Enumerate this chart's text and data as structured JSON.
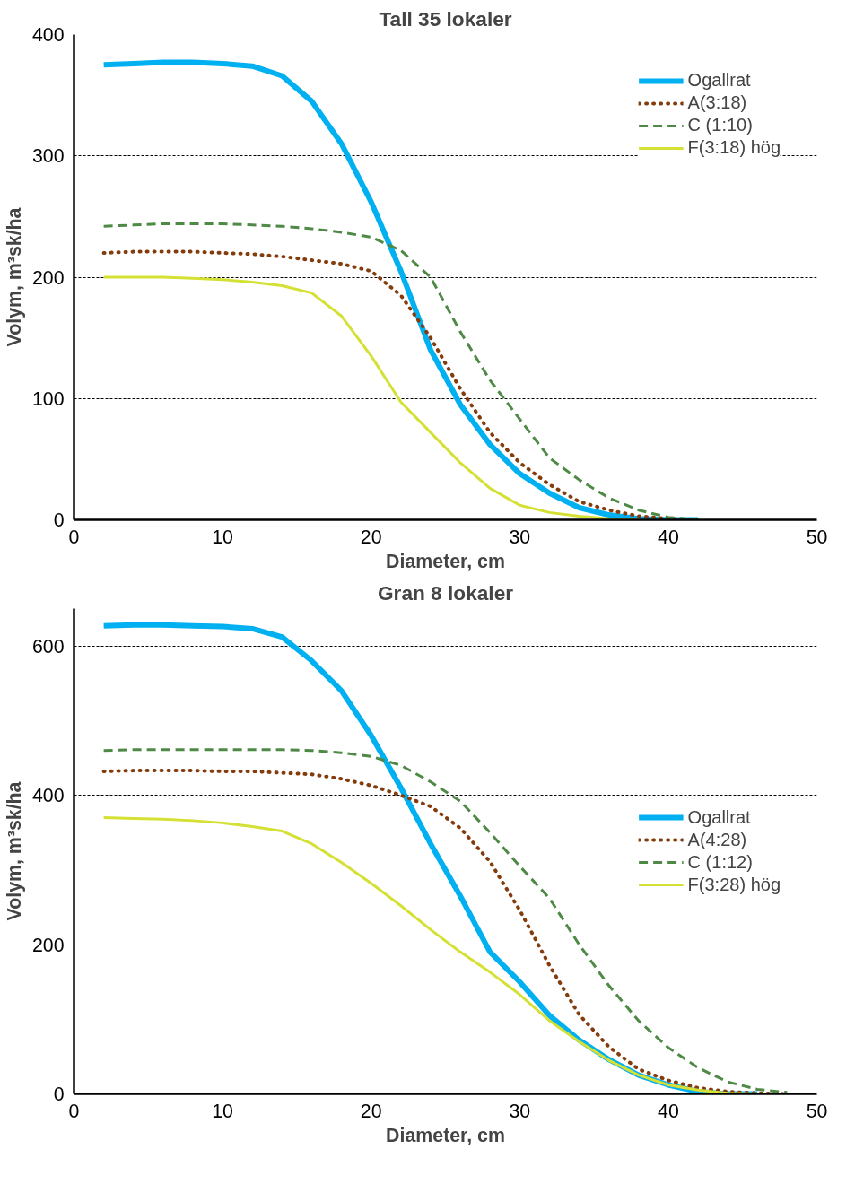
{
  "chart_data": [
    {
      "type": "line",
      "title": "Tall 35 lokaler",
      "xlabel": "Diameter, cm",
      "ylabel": "Volym, m³sk/ha",
      "xlim": [
        0,
        50
      ],
      "xticks": [
        0,
        10,
        20,
        30,
        40,
        50
      ],
      "ylim": [
        0,
        400
      ],
      "yticks": [
        0,
        100,
        200,
        300,
        400
      ],
      "grid": "y",
      "legend": "top right",
      "x": [
        2,
        4,
        6,
        8,
        10,
        12,
        14,
        16,
        18,
        20,
        22,
        24,
        26,
        28,
        30,
        32,
        34,
        36,
        38,
        40,
        42
      ],
      "series": [
        {
          "name": "Ogallrat",
          "color": "#00b0f0",
          "line_style": "solid",
          "values": [
            375,
            376,
            377,
            377,
            376,
            374,
            366,
            345,
            310,
            262,
            205,
            140,
            95,
            62,
            38,
            22,
            10,
            4,
            1,
            0,
            0
          ]
        },
        {
          "name": "A(3:18)",
          "color": "#843c0c",
          "line_style": "dotted",
          "values": [
            220,
            221,
            221,
            221,
            220,
            219,
            217,
            214,
            211,
            205,
            185,
            150,
            108,
            72,
            47,
            29,
            15,
            8,
            3,
            1,
            0
          ]
        },
        {
          "name": "C (1:10)",
          "color": "#4e8a45",
          "line_style": "dashed",
          "values": [
            242,
            243,
            244,
            244,
            244,
            243,
            242,
            240,
            237,
            233,
            222,
            200,
            155,
            115,
            83,
            51,
            33,
            18,
            8,
            2,
            0
          ]
        },
        {
          "name": "F(3:18) hög",
          "color": "#d4e034",
          "line_style": "solid",
          "values": [
            200,
            200,
            200,
            199,
            198,
            196,
            193,
            187,
            168,
            135,
            97,
            72,
            47,
            26,
            12,
            6,
            3,
            1,
            0,
            null,
            null
          ]
        }
      ]
    },
    {
      "type": "line",
      "title": "Gran 8 lokaler",
      "xlabel": "Diameter, cm",
      "ylabel": "Volym, m³sk/ha",
      "xlim": [
        0,
        50
      ],
      "xticks": [
        0,
        10,
        20,
        30,
        40,
        50
      ],
      "ylim": [
        0,
        650
      ],
      "yticks": [
        0,
        200,
        400,
        600
      ],
      "grid": "y",
      "legend": "right",
      "x": [
        2,
        4,
        6,
        8,
        10,
        12,
        14,
        16,
        18,
        20,
        22,
        24,
        26,
        28,
        30,
        32,
        34,
        36,
        38,
        40,
        42,
        44,
        46,
        48
      ],
      "series": [
        {
          "name": "Ogallrat",
          "color": "#00b0f0",
          "line_style": "solid",
          "values": [
            627,
            628,
            628,
            627,
            626,
            623,
            612,
            580,
            540,
            480,
            410,
            335,
            265,
            190,
            150,
            105,
            72,
            46,
            25,
            12,
            3,
            0,
            0,
            null
          ]
        },
        {
          "name": "A(4:28)",
          "color": "#843c0c",
          "line_style": "dotted",
          "values": [
            432,
            433,
            433,
            433,
            432,
            432,
            430,
            428,
            422,
            413,
            400,
            385,
            356,
            311,
            246,
            172,
            106,
            63,
            33,
            18,
            8,
            3,
            1,
            0
          ]
        },
        {
          "name": "C (1:12)",
          "color": "#4e8a45",
          "line_style": "dashed",
          "values": [
            460,
            461,
            461,
            461,
            461,
            461,
            461,
            460,
            457,
            452,
            440,
            418,
            392,
            350,
            305,
            262,
            200,
            145,
            98,
            62,
            35,
            16,
            6,
            2
          ]
        },
        {
          "name": "F(3:28) hög",
          "color": "#d4e034",
          "line_style": "solid",
          "values": [
            370,
            369,
            368,
            366,
            363,
            358,
            352,
            335,
            310,
            282,
            252,
            220,
            190,
            163,
            133,
            98,
            70,
            45,
            25,
            12,
            5,
            1,
            0,
            null
          ]
        }
      ]
    }
  ]
}
